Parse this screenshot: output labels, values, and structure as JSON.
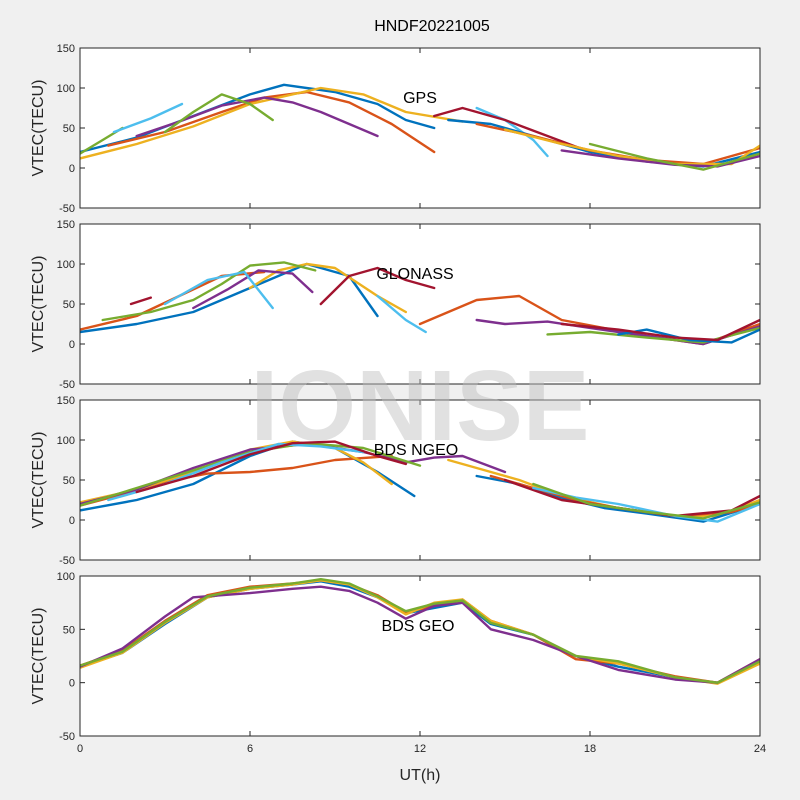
{
  "title": "HNDF20221005",
  "watermark": "IONISE",
  "xlabel": "UT(h)",
  "ylabel": "VTEC(TECU)",
  "x_ticks": [
    0,
    6,
    12,
    18,
    24
  ],
  "colors": [
    "#0072BD",
    "#D95319",
    "#EDB120",
    "#7E2F8E",
    "#77AC30",
    "#4DBEEE",
    "#A2142F"
  ],
  "chart_data": [
    {
      "type": "line",
      "label": "GPS",
      "xlim": [
        0,
        24
      ],
      "ylim": [
        -50,
        150
      ],
      "yticks": [
        -50,
        0,
        50,
        100,
        150
      ],
      "series": [
        {
          "color": "#0072BD",
          "x": [
            0,
            2,
            4,
            6,
            7.2,
            9,
            10.5,
            11.5,
            12.5
          ],
          "values": [
            20,
            38,
            65,
            92,
            104,
            95,
            80,
            60,
            50
          ]
        },
        {
          "color": "#D95319",
          "x": [
            1,
            3,
            5,
            6.5,
            8,
            9.5,
            11,
            12.5
          ],
          "values": [
            28,
            45,
            70,
            88,
            95,
            82,
            55,
            20
          ]
        },
        {
          "color": "#EDB120",
          "x": [
            0,
            2,
            4,
            6,
            8.5,
            10,
            11.5,
            13.5
          ],
          "values": [
            12,
            30,
            52,
            80,
            100,
            92,
            70,
            58
          ]
        },
        {
          "color": "#7E2F8E",
          "x": [
            2,
            3.5,
            5,
            6.5,
            7.5,
            8.5,
            9.5,
            10.5
          ],
          "values": [
            40,
            58,
            78,
            88,
            82,
            70,
            55,
            40
          ]
        },
        {
          "color": "#77AC30",
          "x": [
            0,
            0.8,
            1.5
          ],
          "values": [
            18,
            35,
            50
          ]
        },
        {
          "color": "#77AC30",
          "x": [
            3,
            4,
            5,
            6,
            6.8
          ],
          "values": [
            45,
            70,
            92,
            80,
            60
          ]
        },
        {
          "color": "#4DBEEE",
          "x": [
            1.2,
            2.5,
            3.6
          ],
          "values": [
            45,
            62,
            80
          ]
        },
        {
          "color": "#4DBEEE",
          "x": [
            14,
            15,
            16,
            16.5
          ],
          "values": [
            75,
            60,
            35,
            15
          ]
        },
        {
          "color": "#A2142F",
          "x": [
            12.5,
            13.5,
            15,
            16.5,
            18,
            19.5
          ],
          "values": [
            65,
            75,
            60,
            40,
            20,
            12
          ]
        },
        {
          "color": "#0072BD",
          "x": [
            13,
            14.5,
            16,
            18,
            20,
            22,
            24
          ],
          "values": [
            60,
            55,
            40,
            20,
            8,
            2,
            20
          ]
        },
        {
          "color": "#D95319",
          "x": [
            14,
            16,
            18,
            20,
            22,
            24
          ],
          "values": [
            55,
            40,
            22,
            10,
            5,
            25
          ]
        },
        {
          "color": "#EDB120",
          "x": [
            15,
            17,
            19,
            21,
            23,
            24
          ],
          "values": [
            48,
            30,
            15,
            5,
            5,
            28
          ]
        },
        {
          "color": "#7E2F8E",
          "x": [
            17,
            19,
            21,
            22.5,
            24
          ],
          "values": [
            22,
            12,
            4,
            2,
            15
          ]
        },
        {
          "color": "#77AC30",
          "x": [
            18,
            20,
            22,
            24
          ],
          "values": [
            30,
            12,
            -2,
            18
          ]
        }
      ]
    },
    {
      "type": "line",
      "label": "GLONASS",
      "xlim": [
        0,
        24
      ],
      "ylim": [
        -50,
        150
      ],
      "yticks": [
        -50,
        0,
        50,
        100,
        150
      ],
      "series": [
        {
          "color": "#0072BD",
          "x": [
            0,
            2,
            4,
            6,
            8,
            9.5,
            10.5
          ],
          "values": [
            15,
            25,
            40,
            70,
            100,
            85,
            35
          ]
        },
        {
          "color": "#D95319",
          "x": [
            0,
            2,
            3.5,
            5,
            6.5
          ],
          "values": [
            18,
            35,
            60,
            85,
            90
          ]
        },
        {
          "color": "#EDB120",
          "x": [
            6,
            7,
            8,
            9,
            10.5,
            11.5
          ],
          "values": [
            70,
            92,
            100,
            95,
            60,
            40
          ]
        },
        {
          "color": "#7E2F8E",
          "x": [
            4,
            5.2,
            6.3,
            7.5,
            8.2
          ],
          "values": [
            45,
            68,
            92,
            88,
            65
          ]
        },
        {
          "color": "#77AC30",
          "x": [
            0.8,
            2.5,
            4,
            5,
            6,
            7.2,
            8.3
          ],
          "values": [
            30,
            40,
            55,
            75,
            98,
            102,
            92
          ]
        },
        {
          "color": "#4DBEEE",
          "x": [
            3,
            4.5,
            5.8,
            6.8
          ],
          "values": [
            50,
            80,
            90,
            45
          ]
        },
        {
          "color": "#A2142F",
          "x": [
            1.8,
            2.5
          ],
          "values": [
            50,
            58
          ]
        },
        {
          "color": "#A2142F",
          "x": [
            8.5,
            9.5,
            10.5,
            11.5,
            12.5
          ],
          "values": [
            50,
            85,
            95,
            80,
            70
          ]
        },
        {
          "color": "#D95319",
          "x": [
            12,
            14,
            15.5,
            17,
            18.5,
            20,
            22,
            24
          ],
          "values": [
            25,
            55,
            60,
            30,
            20,
            10,
            0,
            25
          ]
        },
        {
          "color": "#4DBEEE",
          "x": [
            10.5,
            11.5,
            12.2
          ],
          "values": [
            60,
            30,
            15
          ]
        },
        {
          "color": "#7E2F8E",
          "x": [
            14,
            15,
            16.5,
            18,
            20,
            22,
            24
          ],
          "values": [
            30,
            25,
            28,
            20,
            10,
            0,
            22
          ]
        },
        {
          "color": "#77AC30",
          "x": [
            16.5,
            18,
            20,
            22,
            24
          ],
          "values": [
            12,
            15,
            8,
            2,
            20
          ]
        },
        {
          "color": "#0072BD",
          "x": [
            19,
            20,
            21.5,
            23,
            24
          ],
          "values": [
            12,
            18,
            5,
            2,
            18
          ]
        },
        {
          "color": "#A2142F",
          "x": [
            17,
            19,
            21,
            22.5,
            24
          ],
          "values": [
            25,
            18,
            8,
            5,
            30
          ]
        }
      ]
    },
    {
      "type": "line",
      "label": "BDS NGEO",
      "xlim": [
        0,
        24
      ],
      "ylim": [
        -50,
        150
      ],
      "yticks": [
        -50,
        0,
        50,
        100,
        150
      ],
      "series": [
        {
          "color": "#0072BD",
          "x": [
            0,
            2,
            4,
            6,
            7.5,
            9,
            10.5,
            11.8
          ],
          "values": [
            12,
            25,
            45,
            80,
            98,
            90,
            60,
            30
          ]
        },
        {
          "color": "#D95319",
          "x": [
            0,
            1.5,
            3,
            4.5,
            6,
            7.5,
            9,
            11
          ],
          "values": [
            18,
            32,
            48,
            58,
            60,
            65,
            75,
            80
          ]
        },
        {
          "color": "#EDB120",
          "x": [
            0,
            2,
            4,
            6,
            7.5,
            9,
            10,
            11
          ],
          "values": [
            22,
            38,
            60,
            88,
            98,
            90,
            72,
            45
          ]
        },
        {
          "color": "#7E2F8E",
          "x": [
            0,
            2,
            4,
            6,
            8,
            10,
            11.5,
            12.5,
            13.5,
            15
          ],
          "values": [
            20,
            38,
            65,
            88,
            95,
            85,
            72,
            78,
            80,
            60
          ]
        },
        {
          "color": "#77AC30",
          "x": [
            0,
            2,
            4,
            6,
            8,
            10,
            12
          ],
          "values": [
            18,
            40,
            62,
            85,
            96,
            90,
            68
          ]
        },
        {
          "color": "#4DBEEE",
          "x": [
            1,
            3,
            5,
            7,
            8.5,
            10
          ],
          "values": [
            25,
            45,
            72,
            95,
            92,
            85
          ]
        },
        {
          "color": "#A2142F",
          "x": [
            2,
            4,
            6,
            7.5,
            9,
            10.5,
            11.5
          ],
          "values": [
            35,
            55,
            82,
            96,
            98,
            80,
            70
          ]
        },
        {
          "color": "#EDB120",
          "x": [
            13,
            14,
            15.5,
            17,
            19,
            21,
            22.5,
            24
          ],
          "values": [
            75,
            65,
            50,
            30,
            15,
            5,
            5,
            25
          ]
        },
        {
          "color": "#0072BD",
          "x": [
            14,
            15.5,
            17,
            18.5,
            20,
            22,
            24
          ],
          "values": [
            55,
            45,
            28,
            15,
            8,
            -2,
            20
          ]
        },
        {
          "color": "#D95319",
          "x": [
            14.5,
            16,
            17.5,
            19,
            21,
            23,
            24
          ],
          "values": [
            55,
            40,
            25,
            15,
            5,
            10,
            20
          ]
        },
        {
          "color": "#A2142F",
          "x": [
            15,
            17,
            19,
            21,
            23,
            24
          ],
          "values": [
            50,
            25,
            15,
            5,
            12,
            30
          ]
        },
        {
          "color": "#4DBEEE",
          "x": [
            16,
            17.5,
            19,
            21,
            22.5,
            24
          ],
          "values": [
            40,
            28,
            20,
            5,
            -2,
            20
          ]
        },
        {
          "color": "#77AC30",
          "x": [
            16,
            18,
            20,
            22,
            24
          ],
          "values": [
            45,
            20,
            10,
            2,
            22
          ]
        }
      ]
    },
    {
      "type": "line",
      "label": "BDS GEO",
      "xlim": [
        0,
        24
      ],
      "ylim": [
        -50,
        100
      ],
      "yticks": [
        -50,
        0,
        50,
        100
      ],
      "series": [
        {
          "color": "#0072BD",
          "x": [
            0,
            1.5,
            3,
            4.5,
            6,
            7.5,
            8.5,
            9.5,
            10.5,
            11.5,
            12.5,
            13.5,
            14.5,
            16,
            17.5,
            19,
            21,
            22.5,
            24
          ],
          "values": [
            15,
            28,
            55,
            80,
            88,
            92,
            95,
            90,
            80,
            65,
            70,
            75,
            55,
            45,
            25,
            15,
            5,
            0,
            20
          ]
        },
        {
          "color": "#D95319",
          "x": [
            0,
            1.5,
            3,
            4.5,
            6,
            7.5,
            8.5,
            9.5,
            10.5,
            11.5,
            12.5,
            13.5,
            14.5,
            16,
            17.5,
            19,
            21,
            22.5,
            24
          ],
          "values": [
            16,
            30,
            58,
            82,
            90,
            93,
            96,
            92,
            82,
            66,
            72,
            78,
            58,
            45,
            22,
            18,
            6,
            0,
            22
          ]
        },
        {
          "color": "#EDB120",
          "x": [
            0,
            1.5,
            3,
            4.5,
            6,
            7.5,
            8.5,
            9.5,
            10.5,
            11.5,
            12.5,
            13.5,
            14.5,
            16,
            17.5,
            19,
            21,
            22.5,
            24
          ],
          "values": [
            14,
            28,
            56,
            80,
            88,
            92,
            96,
            92,
            80,
            64,
            75,
            78,
            58,
            45,
            25,
            18,
            5,
            -1,
            18
          ]
        },
        {
          "color": "#7E2F8E",
          "x": [
            0,
            1.5,
            3,
            4,
            5,
            6,
            7.5,
            8.5,
            9.5,
            10.5,
            11.5,
            12.5,
            13.5,
            14.5,
            16,
            17.5,
            19,
            21,
            22.5,
            24
          ],
          "values": [
            15,
            32,
            62,
            80,
            82,
            84,
            88,
            90,
            86,
            75,
            60,
            72,
            75,
            50,
            40,
            25,
            12,
            3,
            0,
            22
          ]
        },
        {
          "color": "#77AC30",
          "x": [
            0,
            1.5,
            3,
            4.5,
            6,
            7.5,
            8.5,
            9.5,
            10.5,
            11.5,
            12.5,
            13.5,
            14.5,
            16,
            17.5,
            19,
            21,
            22.5,
            24
          ],
          "values": [
            16,
            29,
            57,
            81,
            89,
            93,
            97,
            93,
            81,
            67,
            74,
            77,
            56,
            45,
            25,
            20,
            5,
            0,
            20
          ]
        }
      ]
    }
  ]
}
